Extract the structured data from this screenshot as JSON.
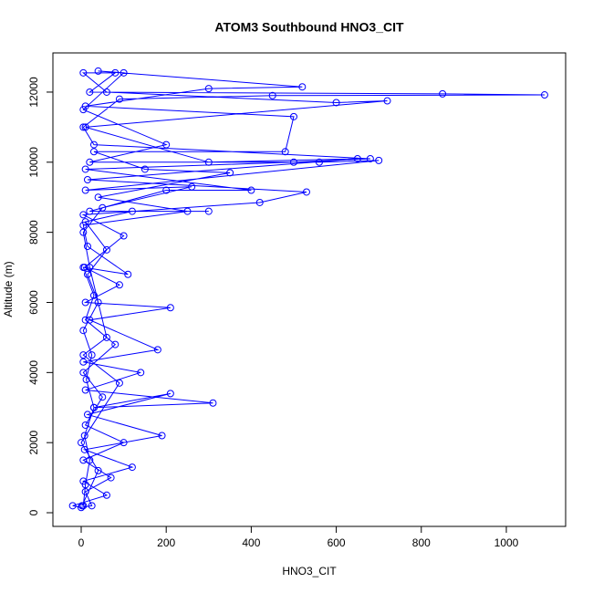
{
  "chart_data": {
    "type": "line",
    "title": "ATOM3 Southbound HNO3_CIT",
    "x_label": "HNO3_CIT",
    "y_label": "Altitude (m)",
    "color": "#0000ff",
    "markers": true,
    "x": [
      5,
      10,
      20,
      8,
      30,
      12,
      25,
      5,
      40,
      15,
      60,
      10,
      120,
      300,
      20,
      200,
      400,
      10,
      500,
      680,
      30,
      5,
      90,
      450,
      1090,
      850,
      20,
      80,
      5,
      60,
      600,
      720,
      10,
      300,
      650,
      15,
      530,
      420,
      5,
      100,
      8,
      90,
      10,
      210,
      20,
      180,
      5,
      140,
      10,
      310,
      30,
      210,
      15,
      190,
      8,
      120,
      5,
      60,
      -20,
      0,
      25,
      10,
      70,
      5,
      100,
      10,
      50,
      5,
      80,
      10,
      30,
      5,
      110,
      15,
      5,
      250,
      40,
      350,
      150,
      30,
      480,
      500,
      10,
      300,
      520,
      40,
      100,
      5,
      200,
      20,
      560,
      700,
      10,
      260,
      50,
      5,
      20,
      60,
      5,
      90,
      0,
      40,
      2
    ],
    "values": [
      200,
      800,
      1500,
      2200,
      3000,
      3800,
      4500,
      5200,
      6000,
      6800,
      7500,
      8300,
      8600,
      8600,
      8600,
      9200,
      9200,
      9800,
      10000,
      10100,
      10500,
      11000,
      11800,
      11900,
      11920,
      11950,
      12000,
      12550,
      12550,
      12000,
      11700,
      11750,
      11000,
      10000,
      10100,
      9500,
      9150,
      8850,
      8500,
      7900,
      7000,
      6500,
      6000,
      5850,
      5500,
      4650,
      4300,
      4000,
      3500,
      3130,
      3000,
      3400,
      2800,
      2200,
      1800,
      1300,
      900,
      500,
      200,
      150,
      200,
      600,
      1000,
      1500,
      2000,
      2500,
      3300,
      4000,
      4800,
      5500,
      6200,
      7000,
      6800,
      7600,
      8200,
      8600,
      9000,
      9700,
      9800,
      10300,
      10300,
      11300,
      11600,
      12100,
      12150,
      12600,
      12550,
      11500,
      10500,
      10000,
      10000,
      10050,
      9200,
      9300,
      8700,
      8000,
      7000,
      5000,
      4500,
      3700,
      2000,
      1200,
      200
    ],
    "xlim": [
      -66.5,
      1139.5
    ],
    "ylim": [
      -390,
      13118
    ],
    "xticks": [
      0,
      200,
      400,
      600,
      800,
      1000
    ],
    "yticks": [
      0,
      2000,
      4000,
      6000,
      8000,
      10000,
      12000
    ]
  }
}
